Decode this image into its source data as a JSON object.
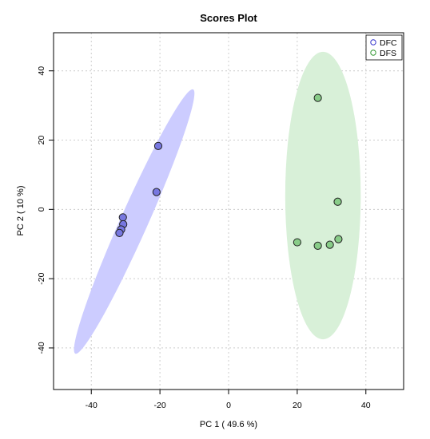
{
  "chart_data": {
    "type": "scatter",
    "title": "Scores Plot",
    "xlabel": "PC 1 ( 49.6 %)",
    "ylabel": "PC 2 ( 10 %)",
    "xlim": [
      -51,
      51
    ],
    "ylim": [
      -52,
      51
    ],
    "xticks": [
      -40,
      -20,
      0,
      20,
      40
    ],
    "yticks": [
      -40,
      -20,
      0,
      20,
      40
    ],
    "xtick_labels": [
      "-40",
      "-20",
      "0",
      "20",
      "40"
    ],
    "ytick_labels": [
      "-40",
      "-20",
      "0",
      "20",
      "40"
    ],
    "grid": true,
    "legend_position": "top-right",
    "series": [
      {
        "name": "DFC",
        "color": "#3333cc",
        "fill": "#7777e0",
        "ellipse_fill": "#ccccff",
        "points": [
          {
            "x": -20.5,
            "y": 18.3
          },
          {
            "x": -21.0,
            "y": 5.0
          },
          {
            "x": -30.8,
            "y": -2.3
          },
          {
            "x": -30.7,
            "y": -4.3
          },
          {
            "x": -31.3,
            "y": -5.8
          },
          {
            "x": -31.8,
            "y": -6.8
          }
        ],
        "ellipse": {
          "cx": -27.5,
          "cy": -3.5,
          "rx": 42.2,
          "ry": 4.0,
          "angle_deg": 66.0
        }
      },
      {
        "name": "DFS",
        "color": "#339933",
        "fill": "#88cc88",
        "ellipse_fill": "#d8f0d8",
        "points": [
          {
            "x": 26.0,
            "y": 32.2
          },
          {
            "x": 31.8,
            "y": 2.2
          },
          {
            "x": 20.0,
            "y": -9.5
          },
          {
            "x": 26.0,
            "y": -10.5
          },
          {
            "x": 29.5,
            "y": -10.2
          },
          {
            "x": 32.0,
            "y": -8.6
          }
        ],
        "ellipse": {
          "cx": 27.5,
          "cy": 4.0,
          "rx": 11.0,
          "ry": 41.5,
          "angle_deg": 0
        }
      }
    ]
  }
}
